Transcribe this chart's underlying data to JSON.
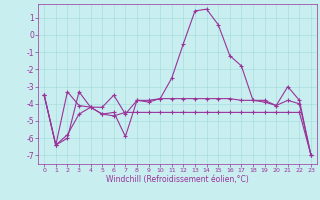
{
  "xlabel": "Windchill (Refroidissement éolien,°C)",
  "background_color": "#c8eef0",
  "line_color": "#993399",
  "grid_color": "#a8dde0",
  "xlim": [
    -0.5,
    23.5
  ],
  "ylim": [
    -7.5,
    1.8
  ],
  "yticks": [
    1,
    0,
    -1,
    -2,
    -3,
    -4,
    -5,
    -6,
    -7
  ],
  "xticks": [
    0,
    1,
    2,
    3,
    4,
    5,
    6,
    7,
    8,
    9,
    10,
    11,
    12,
    13,
    14,
    15,
    16,
    17,
    18,
    19,
    20,
    21,
    22,
    23
  ],
  "series": [
    {
      "x": [
        0,
        1,
        2,
        3,
        4,
        5,
        6,
        7,
        8,
        9,
        10,
        11,
        12,
        13,
        14,
        15,
        16,
        17,
        18,
        19,
        20,
        21,
        22,
        23
      ],
      "y": [
        -3.5,
        -6.4,
        -6.0,
        -3.3,
        -4.2,
        -4.2,
        -3.5,
        -4.6,
        -3.8,
        -3.8,
        -3.7,
        -3.7,
        -3.7,
        -3.7,
        -3.7,
        -3.7,
        -3.7,
        -3.8,
        -3.8,
        -3.9,
        -4.1,
        -3.8,
        -4.0,
        -7.0
      ]
    },
    {
      "x": [
        0,
        1,
        2,
        3,
        4,
        5,
        6,
        7,
        8,
        9,
        10,
        11,
        12,
        13,
        14,
        15,
        16,
        17,
        18,
        19,
        20,
        21,
        22,
        23
      ],
      "y": [
        -3.5,
        -6.4,
        -3.3,
        -4.1,
        -4.2,
        -4.6,
        -4.5,
        -5.9,
        -3.8,
        -3.9,
        -3.7,
        -2.5,
        -0.5,
        1.4,
        1.5,
        0.6,
        -1.2,
        -1.8,
        -3.8,
        -3.8,
        -4.1,
        -3.0,
        -3.8,
        -7.0
      ]
    },
    {
      "x": [
        0,
        1,
        2,
        3,
        4,
        5,
        6,
        7,
        8,
        9,
        10,
        11,
        12,
        13,
        14,
        15,
        16,
        17,
        18,
        19,
        20,
        21,
        22,
        23
      ],
      "y": [
        -3.5,
        -6.4,
        -5.8,
        -4.6,
        -4.2,
        -4.6,
        -4.7,
        -4.5,
        -4.5,
        -4.5,
        -4.5,
        -4.5,
        -4.5,
        -4.5,
        -4.5,
        -4.5,
        -4.5,
        -4.5,
        -4.5,
        -4.5,
        -4.5,
        -4.5,
        -4.5,
        -7.0
      ]
    }
  ]
}
